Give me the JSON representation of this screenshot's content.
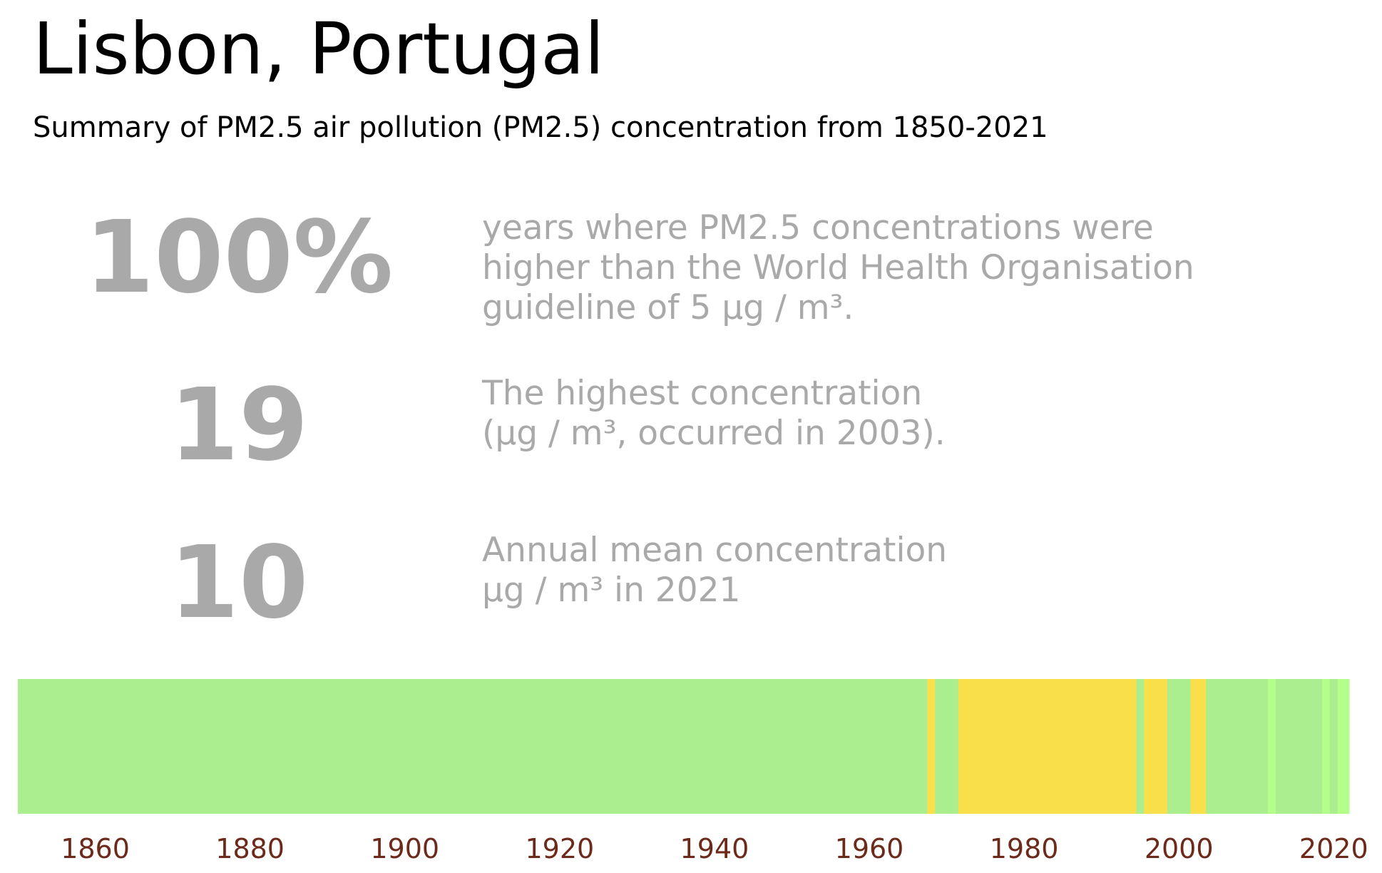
{
  "header": {
    "title": "Lisbon, Portugal",
    "subtitle": "Summary of PM2.5 air pollution (PM2.5) concentration from 1850-2021"
  },
  "stats": [
    {
      "value": "100%",
      "lines": [
        "years where PM2.5 concentrations were",
        "higher than the World Health Organisation",
        "guideline of 5 µg / m³."
      ]
    },
    {
      "value": "19",
      "lines": [
        "The highest concentration",
        "(µg / m³, occurred in 2003)."
      ]
    },
    {
      "value": "10",
      "lines": [
        "Annual mean concentration",
        "µg / m³ in 2021"
      ]
    }
  ],
  "colors": {
    "text_muted": "#a9a9a9",
    "tick_label": "#6b2a1a"
  },
  "chart_data": {
    "type": "heatmap",
    "x_range": [
      1850,
      2022
    ],
    "x_ticks": [
      "1860",
      "1880",
      "1900",
      "1920",
      "1940",
      "1960",
      "1980",
      "2000",
      "2020"
    ],
    "x_tick_values": [
      1860,
      1880,
      1900,
      1920,
      1940,
      1960,
      1980,
      2000,
      2020
    ],
    "segments": [
      {
        "start": 1850,
        "end": 1967.5,
        "color": "#aaee90"
      },
      {
        "start": 1967.5,
        "end": 1968.5,
        "color": "#f9e04a"
      },
      {
        "start": 1968.5,
        "end": 1971.5,
        "color": "#aaee90"
      },
      {
        "start": 1971.5,
        "end": 1994.5,
        "color": "#f9e04a"
      },
      {
        "start": 1994.5,
        "end": 1995.5,
        "color": "#aaee90"
      },
      {
        "start": 1995.5,
        "end": 1998.5,
        "color": "#f9e04a"
      },
      {
        "start": 1998.5,
        "end": 2001.5,
        "color": "#aaee90"
      },
      {
        "start": 2001.5,
        "end": 2003.5,
        "color": "#f9e04a"
      },
      {
        "start": 2003.5,
        "end": 2011.5,
        "color": "#aaee90"
      },
      {
        "start": 2011.5,
        "end": 2012.5,
        "color": "#b4ff8c"
      },
      {
        "start": 2012.5,
        "end": 2018.5,
        "color": "#aaee90"
      },
      {
        "start": 2018.5,
        "end": 2019.5,
        "color": "#b4ff8c"
      },
      {
        "start": 2019.5,
        "end": 2020.5,
        "color": "#aaee90"
      },
      {
        "start": 2020.5,
        "end": 2022,
        "color": "#b4ff8c"
      }
    ]
  }
}
